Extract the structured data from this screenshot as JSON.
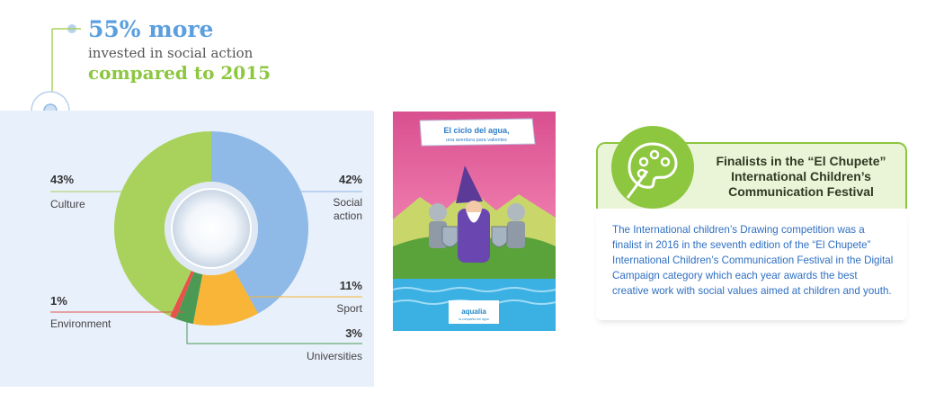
{
  "header": {
    "headline": "55% more",
    "subline": "invested in social action",
    "compare": "compared to 2015"
  },
  "colors": {
    "blue": "#8fb9e6",
    "green": "#a8d25c",
    "orange": "#f8b537",
    "red": "#e8524a",
    "darkgreen": "#4a9a54"
  },
  "chart_data": {
    "type": "pie",
    "variant": "donut",
    "slices": [
      {
        "pct_label": "42%",
        "label": "Social action",
        "label_line1": "Social",
        "label_line2": "action",
        "value": 42,
        "color": "#8fb9e6"
      },
      {
        "pct_label": "11%",
        "label": "Sport",
        "value": 11,
        "color": "#f8b537"
      },
      {
        "pct_label": "3%",
        "label": "Universities",
        "value": 3,
        "color": "#4a9a54"
      },
      {
        "pct_label": "1%",
        "label": "Environment",
        "value": 1,
        "color": "#e8524a"
      },
      {
        "pct_label": "43%",
        "label": "Culture",
        "value": 43,
        "color": "#a8d25c"
      }
    ]
  },
  "poster": {
    "title": "El ciclo del agua,",
    "subtitle": "una aventura para valientes",
    "brand": "aqualia",
    "brand_tag": "la compañía del agua"
  },
  "award": {
    "icon": "palette-icon",
    "title": "Finalists in the “El Chupete” International Children’s Communication Festival",
    "body": "The International children’s Drawing competition was a finalist in 2016 in the seventh edition of the “El Chupete” International Children’s Communication Festival in the Digital Campaign category which each year awards the best creative work with social values aimed at children and youth."
  }
}
